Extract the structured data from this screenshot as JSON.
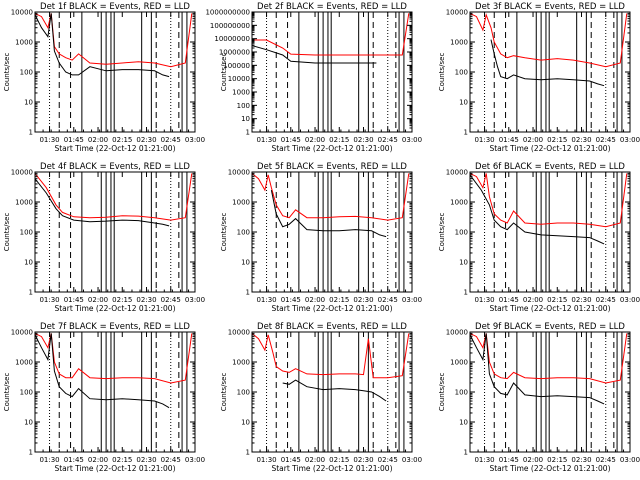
{
  "figure": {
    "start_time_label": "Start Time (22-Oct-12 01:21:00)",
    "ylabel": "Counts/sec",
    "series_desc": "BLACK = Events, RED = LLD"
  },
  "chart_data": [
    {
      "type": "line",
      "title": "Det 1f BLACK = Events, RED = LLD",
      "xlabel": "Start Time (22-Oct-12 01:21:00)",
      "ylabel": "Counts/sec",
      "scale": "log",
      "ylim": [
        1,
        10000
      ],
      "xlim": [
        "01:21",
        "03:00"
      ],
      "x_ticks": [
        "01:30",
        "01:45",
        "02:00",
        "02:15",
        "02:30",
        "02:45",
        "03:00"
      ],
      "y_ticks": [
        "1",
        "10",
        "100",
        "1000",
        "10000"
      ],
      "events": {
        "x": [
          "01:21",
          "01:25",
          "01:29",
          "01:31",
          "01:33",
          "01:36",
          "01:40",
          "01:44",
          "01:48",
          "01:55",
          "02:05",
          "02:15",
          "02:25",
          "02:35",
          "02:40",
          "02:44"
        ],
        "y": [
          8000,
          3000,
          1500,
          9000,
          500,
          200,
          100,
          80,
          80,
          150,
          110,
          120,
          120,
          110,
          80,
          70
        ]
      },
      "lld": {
        "x": [
          "01:21",
          "01:25",
          "01:29",
          "01:31",
          "01:33",
          "01:36",
          "01:40",
          "01:44",
          "01:48",
          "01:55",
          "02:05",
          "02:15",
          "02:25",
          "02:35",
          "02:45",
          "02:54",
          "02:58"
        ],
        "y": [
          9000,
          7000,
          3000,
          9000,
          700,
          400,
          300,
          250,
          400,
          200,
          180,
          200,
          220,
          200,
          150,
          200,
          9000
        ]
      }
    },
    {
      "type": "line",
      "title": "Det 2f BLACK = Events, RED = LLD",
      "xlabel": "Start Time (22-Oct-12 01:21:00)",
      "ylabel": "Counts/sec",
      "scale": "log",
      "ylim": [
        1,
        1000000000
      ],
      "xlim": [
        "01:21",
        "03:00"
      ],
      "x_ticks": [
        "01:30",
        "01:45",
        "02:00",
        "02:15",
        "02:30",
        "02:45",
        "03:00"
      ],
      "y_ticks": [
        "1",
        "10",
        "100",
        "1000",
        "10000",
        "100000",
        "1000000",
        "10000000",
        "100000000",
        "1000000000"
      ],
      "events": {
        "x": [
          "01:21",
          "01:30",
          "01:40",
          "01:45",
          "02:00",
          "02:15",
          "02:30",
          "02:38"
        ],
        "y": [
          3000000,
          1500000,
          600000,
          200000,
          150000,
          150000,
          150000,
          150000
        ]
      },
      "lld": {
        "x": [
          "01:21",
          "01:30",
          "01:40",
          "01:45",
          "02:00",
          "02:15",
          "02:30",
          "02:40",
          "02:54",
          "02:58"
        ],
        "y": [
          8000000,
          8000000,
          2000000,
          700000,
          600000,
          600000,
          600000,
          600000,
          600000,
          800000000
        ]
      }
    },
    {
      "type": "line",
      "title": "Det 3f BLACK = Events, RED = LLD",
      "xlabel": "Start Time (22-Oct-12 01:21:00)",
      "ylabel": "Counts/sec",
      "scale": "log",
      "ylim": [
        1,
        10000
      ],
      "xlim": [
        "01:21",
        "03:00"
      ],
      "x_ticks": [
        "01:30",
        "01:45",
        "02:00",
        "02:15",
        "02:30",
        "02:45",
        "03:00"
      ],
      "y_ticks": [
        "1",
        "10",
        "100",
        "1000",
        "10000"
      ],
      "events": {
        "x": [
          "01:34",
          "01:36",
          "01:38",
          "01:40",
          "01:44",
          "01:48",
          "01:55",
          "02:05",
          "02:15",
          "02:25",
          "02:35",
          "02:40",
          "02:44"
        ],
        "y": [
          1200,
          400,
          150,
          70,
          60,
          80,
          60,
          55,
          60,
          55,
          50,
          40,
          35
        ]
      },
      "lld": {
        "x": [
          "01:21",
          "01:25",
          "01:29",
          "01:31",
          "01:34",
          "01:36",
          "01:40",
          "01:44",
          "01:48",
          "01:55",
          "02:05",
          "02:15",
          "02:25",
          "02:35",
          "02:45",
          "02:54",
          "02:58"
        ],
        "y": [
          9000,
          7000,
          2500,
          8000,
          3000,
          1000,
          400,
          300,
          350,
          300,
          250,
          280,
          250,
          200,
          150,
          200,
          9000
        ]
      }
    },
    {
      "type": "line",
      "title": "Det 4f BLACK = Events, RED = LLD",
      "xlabel": "Start Time (22-Oct-12 01:21:00)",
      "ylabel": "Counts/sec",
      "scale": "log",
      "ylim": [
        1,
        10000
      ],
      "xlim": [
        "01:21",
        "03:00"
      ],
      "x_ticks": [
        "01:30",
        "01:45",
        "02:00",
        "02:15",
        "02:30",
        "02:45",
        "03:00"
      ],
      "y_ticks": [
        "1",
        "10",
        "100",
        "1000",
        "10000"
      ],
      "events": {
        "x": [
          "01:21",
          "01:28",
          "01:34",
          "01:38",
          "01:45",
          "01:55",
          "02:05",
          "02:15",
          "02:25",
          "02:35",
          "02:40",
          "02:44"
        ],
        "y": [
          6000,
          2000,
          600,
          350,
          250,
          220,
          230,
          250,
          240,
          200,
          180,
          160
        ]
      },
      "lld": {
        "x": [
          "01:21",
          "01:28",
          "01:34",
          "01:38",
          "01:45",
          "01:55",
          "02:05",
          "02:15",
          "02:25",
          "02:35",
          "02:45",
          "02:54",
          "02:58"
        ],
        "y": [
          9000,
          3000,
          800,
          450,
          320,
          300,
          310,
          350,
          340,
          300,
          250,
          300,
          9000
        ]
      }
    },
    {
      "type": "line",
      "title": "Det 5f BLACK = Events, RED = LLD",
      "xlabel": "Start Time (22-Oct-12 01:21:00)",
      "ylabel": "Counts/sec",
      "scale": "log",
      "ylim": [
        1,
        10000
      ],
      "xlim": [
        "01:21",
        "03:00"
      ],
      "x_ticks": [
        "01:30",
        "01:45",
        "02:00",
        "02:15",
        "02:30",
        "02:45",
        "03:00"
      ],
      "y_ticks": [
        "1",
        "10",
        "100",
        "1000",
        "10000"
      ],
      "events": {
        "x": [
          "01:33",
          "01:36",
          "01:40",
          "01:44",
          "01:48",
          "01:55",
          "02:05",
          "02:15",
          "02:25",
          "02:35",
          "02:40",
          "02:44"
        ],
        "y": [
          2500,
          400,
          150,
          180,
          280,
          120,
          110,
          110,
          120,
          110,
          80,
          70
        ]
      },
      "lld": {
        "x": [
          "01:21",
          "01:25",
          "01:29",
          "01:31",
          "01:33",
          "01:36",
          "01:40",
          "01:44",
          "01:48",
          "01:55",
          "02:05",
          "02:15",
          "02:25",
          "02:35",
          "02:45",
          "02:54",
          "02:58"
        ],
        "y": [
          9000,
          6000,
          2500,
          8000,
          3000,
          800,
          350,
          300,
          550,
          300,
          300,
          320,
          330,
          300,
          250,
          300,
          9000
        ]
      }
    },
    {
      "type": "line",
      "title": "Det 6f BLACK = Events, RED = LLD",
      "xlabel": "Start Time (22-Oct-12 01:21:00)",
      "ylabel": "Counts/sec",
      "scale": "log",
      "ylim": [
        1,
        10000
      ],
      "xlim": [
        "01:21",
        "03:00"
      ],
      "x_ticks": [
        "01:30",
        "01:45",
        "02:00",
        "02:15",
        "02:30",
        "02:45",
        "03:00"
      ],
      "y_ticks": [
        "1",
        "10",
        "100",
        "1000",
        "10000"
      ],
      "events": {
        "x": [
          "01:21",
          "01:28",
          "01:33",
          "01:36",
          "01:40",
          "01:44",
          "01:48",
          "01:55",
          "02:05",
          "02:15",
          "02:25",
          "02:35",
          "02:40",
          "02:44"
        ],
        "y": [
          8000,
          2500,
          800,
          250,
          150,
          120,
          200,
          100,
          80,
          75,
          70,
          65,
          50,
          40
        ]
      },
      "lld": {
        "x": [
          "01:21",
          "01:25",
          "01:29",
          "01:31",
          "01:33",
          "01:36",
          "01:40",
          "01:44",
          "01:48",
          "01:55",
          "02:05",
          "02:15",
          "02:25",
          "02:35",
          "02:45",
          "02:54",
          "02:58"
        ],
        "y": [
          9000,
          7000,
          3000,
          9000,
          1500,
          400,
          250,
          200,
          500,
          200,
          180,
          200,
          200,
          180,
          150,
          200,
          9000
        ]
      }
    },
    {
      "type": "line",
      "title": "Det 7f BLACK = Events, RED = LLD",
      "xlabel": "Start Time (22-Oct-12 01:21:00)",
      "ylabel": "Counts/sec",
      "scale": "log",
      "ylim": [
        1,
        10000
      ],
      "xlim": [
        "01:21",
        "03:00"
      ],
      "x_ticks": [
        "01:30",
        "01:45",
        "02:00",
        "02:15",
        "02:30",
        "02:45",
        "03:00"
      ],
      "y_ticks": [
        "1",
        "10",
        "100",
        "1000",
        "10000"
      ],
      "events": {
        "x": [
          "01:21",
          "01:25",
          "01:29",
          "01:31",
          "01:33",
          "01:36",
          "01:40",
          "01:44",
          "01:48",
          "01:55",
          "02:05",
          "02:15",
          "02:25",
          "02:35",
          "02:40",
          "02:44"
        ],
        "y": [
          8000,
          3000,
          1200,
          9000,
          500,
          150,
          90,
          70,
          130,
          60,
          55,
          60,
          55,
          50,
          40,
          30
        ]
      },
      "lld": {
        "x": [
          "01:21",
          "01:25",
          "01:29",
          "01:31",
          "01:33",
          "01:36",
          "01:40",
          "01:44",
          "01:48",
          "01:55",
          "02:05",
          "02:15",
          "02:25",
          "02:35",
          "02:45",
          "02:54",
          "02:58"
        ],
        "y": [
          9000,
          7000,
          3000,
          9000,
          1000,
          400,
          300,
          300,
          600,
          300,
          280,
          300,
          300,
          280,
          200,
          250,
          9000
        ]
      }
    },
    {
      "type": "line",
      "title": "Det 8f BLACK = Events, RED = LLD",
      "xlabel": "Start Time (22-Oct-12 01:21:00)",
      "ylabel": "Counts/sec",
      "scale": "log",
      "ylim": [
        1,
        10000
      ],
      "xlim": [
        "01:21",
        "03:00"
      ],
      "x_ticks": [
        "01:30",
        "01:45",
        "02:00",
        "02:15",
        "02:30",
        "02:45",
        "03:00"
      ],
      "y_ticks": [
        "1",
        "10",
        "100",
        "1000",
        "10000"
      ],
      "events": {
        "x": [
          "01:40",
          "01:44",
          "01:48",
          "01:55",
          "02:05",
          "02:15",
          "02:25",
          "02:30",
          "02:35",
          "02:40",
          "02:44"
        ],
        "y": [
          200,
          180,
          250,
          150,
          120,
          130,
          120,
          110,
          100,
          70,
          50
        ]
      },
      "lld": {
        "x": [
          "01:21",
          "01:25",
          "01:29",
          "01:31",
          "01:34",
          "01:36",
          "01:40",
          "01:44",
          "01:48",
          "01:55",
          "02:05",
          "02:15",
          "02:25",
          "02:30",
          "02:33",
          "02:36",
          "02:45",
          "02:54",
          "02:58"
        ],
        "y": [
          9000,
          6000,
          2500,
          8000,
          2000,
          700,
          500,
          450,
          600,
          400,
          380,
          400,
          400,
          380,
          6000,
          300,
          300,
          350,
          9000
        ]
      }
    },
    {
      "type": "line",
      "title": "Det 9f BLACK = Events, RED = LLD",
      "xlabel": "Start Time (22-Oct-12 01:21:00)",
      "ylabel": "Counts/sec",
      "scale": "log",
      "ylim": [
        1,
        10000
      ],
      "xlim": [
        "01:21",
        "03:00"
      ],
      "x_ticks": [
        "01:30",
        "01:45",
        "02:00",
        "02:15",
        "02:30",
        "02:45",
        "03:00"
      ],
      "y_ticks": [
        "1",
        "10",
        "100",
        "1000",
        "10000"
      ],
      "events": {
        "x": [
          "01:21",
          "01:25",
          "01:29",
          "01:31",
          "01:33",
          "01:36",
          "01:40",
          "01:44",
          "01:48",
          "01:55",
          "02:05",
          "02:15",
          "02:25",
          "02:35",
          "02:40",
          "02:44"
        ],
        "y": [
          8000,
          3000,
          1200,
          9000,
          400,
          150,
          90,
          80,
          200,
          80,
          70,
          75,
          70,
          65,
          50,
          40
        ]
      },
      "lld": {
        "x": [
          "01:21",
          "01:25",
          "01:29",
          "01:31",
          "01:33",
          "01:36",
          "01:40",
          "01:44",
          "01:48",
          "01:55",
          "02:05",
          "02:15",
          "02:25",
          "02:35",
          "02:45",
          "02:54",
          "02:58"
        ],
        "y": [
          9000,
          7000,
          3000,
          9000,
          1000,
          400,
          300,
          280,
          450,
          300,
          280,
          300,
          300,
          280,
          200,
          250,
          9000
        ]
      }
    }
  ],
  "markers": {
    "dotted": [
      "01:30",
      "02:45"
    ],
    "dashed": [
      "01:36",
      "01:43",
      "02:36",
      "02:50"
    ],
    "solid": [
      "01:50",
      "02:02",
      "02:05",
      "02:08",
      "02:10",
      "02:27",
      "02:33",
      "02:52",
      "02:55"
    ]
  },
  "colors": {
    "events": "#000000",
    "lld": "#ff0000",
    "axes": "#000000",
    "background": "#ffffff"
  }
}
